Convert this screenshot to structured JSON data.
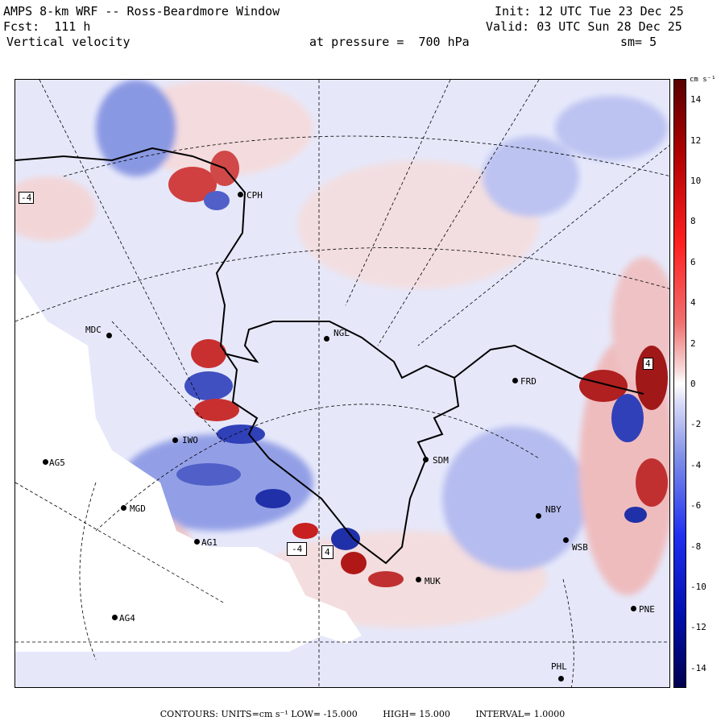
{
  "header": {
    "model": "AMPS 8-km WRF -- Ross-Beardmore Window",
    "forecast": "Fcst:  111 h",
    "variable": "Vertical velocity",
    "init": "Init: 12 UTC Tue 23 Dec 25",
    "valid": "Valid: 03 UTC Sun 28 Dec 25",
    "pressure": "at pressure =  700 hPa",
    "smoothing": "sm= 5"
  },
  "colorbar": {
    "unit": "cm s⁻¹",
    "ticks": [
      "14",
      "12",
      "10",
      "8",
      "6",
      "4",
      "2",
      "0",
      "-2",
      "-4",
      "-6",
      "-8",
      "-10",
      "-12",
      "-14"
    ],
    "min": -15,
    "max": 15
  },
  "footer": {
    "contours": "CONTOURS:  UNITS=cm s⁻¹  LOW= -15.000",
    "high": "HIGH=  15.000",
    "interval": "INTERVAL=   1.0000"
  },
  "stations": [
    {
      "id": "CPH",
      "label": "CPH"
    },
    {
      "id": "MDC",
      "label": "MDC"
    },
    {
      "id": "NGL",
      "label": "NGL"
    },
    {
      "id": "FRD",
      "label": "FRD"
    },
    {
      "id": "IWO",
      "label": "IWO"
    },
    {
      "id": "AG5",
      "label": "AG5"
    },
    {
      "id": "SDM",
      "label": "SDM"
    },
    {
      "id": "MGD",
      "label": "MGD"
    },
    {
      "id": "NBY",
      "label": "NBY"
    },
    {
      "id": "AG1",
      "label": "AG1"
    },
    {
      "id": "WSB",
      "label": "WSB"
    },
    {
      "id": "MUK",
      "label": "MUK"
    },
    {
      "id": "AG4",
      "label": "AG4"
    },
    {
      "id": "PNE",
      "label": "PNE"
    },
    {
      "id": "PHL",
      "label": "PHL"
    }
  ],
  "box_labels": [
    "-4",
    "-4",
    "4",
    "4"
  ],
  "colors": {
    "positive": "#e04040",
    "negative": "#3050c8",
    "neutral": "#ffffff"
  }
}
